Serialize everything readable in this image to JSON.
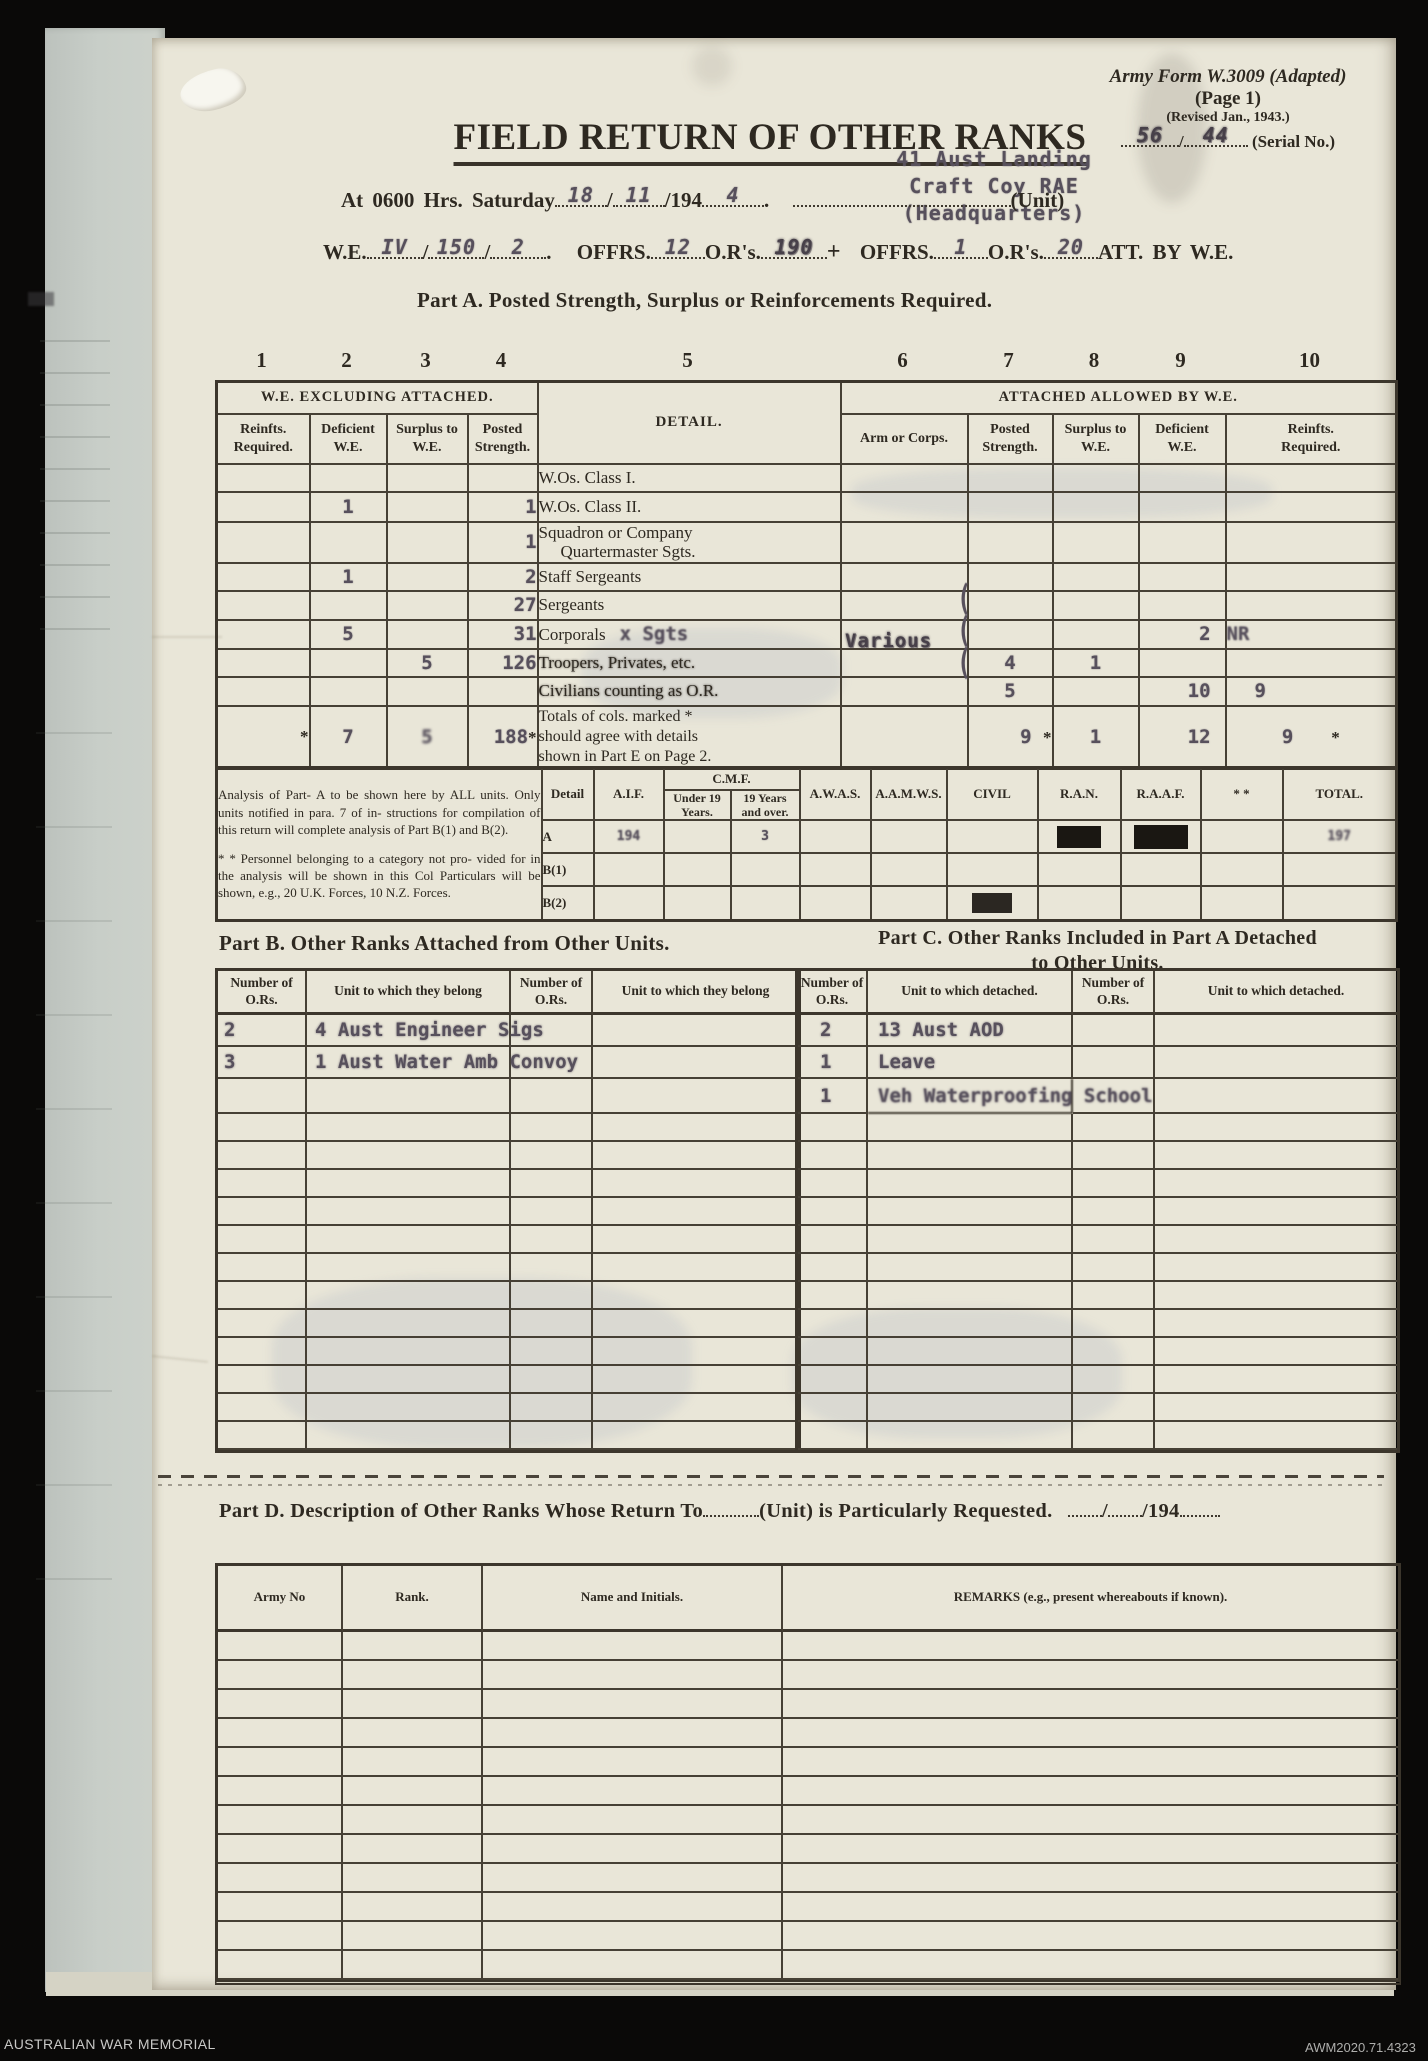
{
  "colors": {
    "paper": "#e9e6d8",
    "ink": "#2e2921",
    "typed_ink": "#57505c",
    "page_edge": "#c7ccc6"
  },
  "scan": {
    "footer_left": "AUSTRALIAN WAR MEMORIAL",
    "footer_right": "AWM2020.71.4323"
  },
  "form": {
    "corner": {
      "line1": "Army Form W.3009 (Adapted)",
      "line2": "(Page 1)",
      "line3": "(Revised Jan., 1943.)",
      "serial_left": "56",
      "slash": "/",
      "serial_right": "44",
      "serial_label": "(Serial No.)"
    },
    "title": "FIELD RETURN OF OTHER RANKS",
    "unit_typed": {
      "line1": "41 Aust Landing",
      "line2": "Craft Coy RAE",
      "line3": "(Headquarters)"
    },
    "at_line": {
      "prefix": "At 0600  Hrs.  Saturday",
      "day": "18",
      "slash1": "/",
      "month": "11",
      "year_printed": "/194",
      "year_typed": "4",
      "dot": ".",
      "unit_label": "(Unit)"
    },
    "we_line": {
      "label": "W.E.",
      "v1": "IV",
      "slash1": "/",
      "v2": "150",
      "slash2": "/",
      "v3": "2",
      "dot": ".",
      "offrs": "OFFRS.",
      "offrs_v": "12",
      "ors": "O.R's.",
      "ors_v": "190",
      "plus": "+",
      "offrs2": "OFFRS.",
      "offrs2_v": "1",
      "ors2": "O.R's.",
      "ors2_v": "20",
      "att": "ATT.  BY  W.E."
    },
    "part_a": {
      "title": "Part A.   Posted Strength, Surplus or Reinforcements Required.",
      "col_numbers": [
        "1",
        "2",
        "3",
        "4",
        "5",
        "6",
        "7",
        "8",
        "9",
        "10"
      ],
      "group_left": "W.E.  EXCLUDING  ATTACHED.",
      "group_right": "ATTACHED  ALLOWED  BY  W.E.",
      "detail_header": "DETAIL.",
      "left_cols": [
        [
          "Reinfts.",
          "Required."
        ],
        [
          "Deficient",
          "W.E."
        ],
        [
          "Surplus to",
          "W.E."
        ],
        [
          "Posted",
          "Strength."
        ]
      ],
      "arm_col": "Arm  or  Corps.",
      "right_cols": [
        [
          "Posted",
          "Strength."
        ],
        [
          "Surplus to",
          "W.E."
        ],
        [
          "Deficient",
          "W.E."
        ],
        [
          "Reinfts.",
          "Required."
        ]
      ],
      "brace": "(",
      "rows": [
        {
          "detail": "W.Os. Class I."
        },
        {
          "c2": "1",
          "c4": "1",
          "detail": "W.Os. Class II."
        },
        {
          "c4": "1",
          "detail_l1": "Squadron or Company",
          "detail_l2": "Quartermaster Sgts."
        },
        {
          "c2": "1",
          "c4": "2",
          "detail": "Staff Sergeants"
        },
        {
          "c4": "27",
          "detail": "Sergeants"
        },
        {
          "c2": "5",
          "c4": "31",
          "detail": "Corporals",
          "detail_typed": "x Sgts",
          "c6": "Various",
          "c9": "2",
          "c10": "NR"
        },
        {
          "c3": "5",
          "c4": "126",
          "detail": "Troopers, Privates, etc.",
          "c7": "4",
          "c8": "1"
        },
        {
          "detail": "Civilians counting as O.R.",
          "c7": "5",
          "c9": "10",
          "c10": "9"
        },
        {
          "star": "*",
          "c2": "7",
          "c3": "5",
          "c4": "188",
          "c7": "9",
          "c8": "1",
          "c9": "12",
          "c10": "9",
          "detail_l1": "Totals of cols. marked *",
          "detail_l2": "should agree with details",
          "detail_l3": "shown in Part E on Page 2."
        }
      ]
    },
    "analysis": {
      "note1": "Analysis of Part- A to be shown here by ALL units.   Only units notified in para. 7 of in- structions for compilation of this return will complete analysis of Part B(1) and B(2).",
      "note2": "* * Personnel belonging to a category not pro- vided for in the analysis will be shown in this Col    Particulars will be shown, e.g., 20 U.K. Forces, 10 N.Z. Forces.",
      "detail_label": "Detail",
      "cmf": "C.M.F.",
      "cols": {
        "aif": "A.I.F.",
        "u19a": "Under 19",
        "u19b": "Years.",
        "o19a": "19 Years",
        "o19b": "and over.",
        "awas": "A.W.A.S.",
        "aamws": "A.A.M.W.S.",
        "civil": "CIVIL",
        "ran": "R.A.N.",
        "raaf": "R.A.A.F.",
        "stars": "* *",
        "total": "TOTAL."
      },
      "rows": [
        {
          "label": "A",
          "aif": "194",
          "o19": "3",
          "total": "197",
          "ran_redacted": true,
          "raaf_redacted": true
        },
        {
          "label": "B(1)"
        },
        {
          "label": "B(2)",
          "civil_redacted": true
        }
      ]
    },
    "part_b": {
      "title": "Part B.   Other Ranks Attached from Other Units.",
      "h_num1": "Number of",
      "h_num2": "O.Rs.",
      "h_unit": "Unit  to  which  they  belong",
      "rows": [
        {
          "n": "2",
          "unit": "4 Aust Engineer Sigs"
        },
        {
          "n": "3",
          "unit": "1 Aust Water Amb Convoy"
        }
      ],
      "empty_rows": 12
    },
    "part_c": {
      "title_l1": "Part C.   Other Ranks Included in Part A Detached",
      "title_l2": "to Other Units.",
      "h_num1": "Number of",
      "h_num2": "O.Rs.",
      "h_unit": "Unit  to  which  detached.",
      "rows": [
        {
          "n": "2",
          "unit": "13 Aust AOD"
        },
        {
          "n": "1",
          "unit": "Leave"
        },
        {
          "n": "1",
          "unit": "Veh Waterproofing School"
        }
      ],
      "empty_rows": 12
    },
    "part_d": {
      "title_a": "Part D.   Description of Other Ranks Whose Return To",
      "title_b": "(Unit) is Particularly Requested.",
      "slash": "/",
      "title_c": "/194",
      "headers": [
        "Army No",
        "Rank.",
        "Name and Initials.",
        "REMARKS   (e.g.,   present   whereabouts   if   known)."
      ],
      "empty_rows": 12
    }
  }
}
